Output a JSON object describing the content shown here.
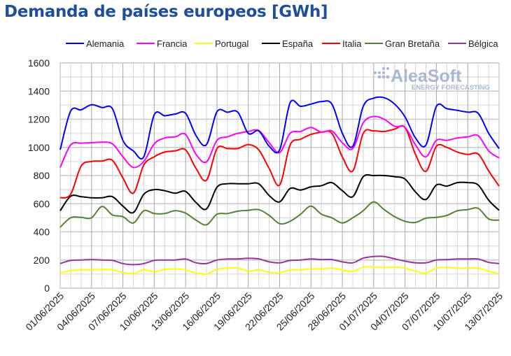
{
  "chart_data": {
    "type": "line",
    "title": "Demanda de países europeos [GWh]",
    "xlabel": "",
    "ylabel": "",
    "ylim": [
      0,
      1600
    ],
    "yticks": [
      0,
      200,
      400,
      600,
      800,
      1000,
      1200,
      1400,
      1600
    ],
    "grid": true,
    "legend_position": "top",
    "x_start": "01/06/2025",
    "x_end": "13/07/2025",
    "xtick_labels": [
      "01/06/2025",
      "04/06/2025",
      "07/06/2025",
      "10/06/2025",
      "13/06/2025",
      "16/06/2025",
      "19/06/2025",
      "22/06/2025",
      "25/06/2025",
      "28/06/2025",
      "01/07/2025",
      "04/07/2025",
      "07/07/2025",
      "10/07/2025",
      "13/07/2025"
    ],
    "series": [
      {
        "name": "Alemania",
        "color": "#0000ff",
        "values": [
          983,
          1258,
          1267,
          1303,
          1283,
          1275,
          1050,
          975,
          933,
          1233,
          1225,
          1237,
          1242,
          1083,
          1020,
          1253,
          1250,
          1250,
          1100,
          1117,
          1008,
          983,
          1317,
          1292,
          1308,
          1325,
          1308,
          1100,
          1008,
          1292,
          1350,
          1353,
          1308,
          1217,
          1067,
          1017,
          1292,
          1275,
          1263,
          1250,
          1242,
          1100,
          992
        ]
      },
      {
        "name": "Francia",
        "color": "#ff00ff",
        "values": [
          858,
          1017,
          1030,
          1033,
          1037,
          1025,
          933,
          858,
          900,
          1025,
          1067,
          1075,
          1092,
          950,
          897,
          1050,
          1075,
          1100,
          1113,
          1120,
          1033,
          963,
          1100,
          1113,
          1142,
          1108,
          1117,
          1033,
          992,
          1175,
          1220,
          1200,
          1150,
          1142,
          1017,
          933,
          1050,
          1050,
          1067,
          1075,
          1083,
          975,
          925
        ]
      },
      {
        "name": "Portugal",
        "color": "#ffff00",
        "values": [
          108,
          125,
          130,
          130,
          133,
          130,
          113,
          103,
          130,
          117,
          133,
          137,
          130,
          108,
          100,
          133,
          142,
          142,
          120,
          130,
          113,
          108,
          130,
          130,
          137,
          137,
          142,
          130,
          120,
          150,
          150,
          147,
          150,
          142,
          120,
          108,
          142,
          147,
          142,
          142,
          142,
          120,
          103
        ]
      },
      {
        "name": "España",
        "color": "#000000",
        "values": [
          550,
          653,
          650,
          642,
          642,
          650,
          583,
          537,
          667,
          700,
          692,
          675,
          687,
          608,
          563,
          717,
          742,
          742,
          742,
          742,
          658,
          613,
          708,
          697,
          720,
          728,
          750,
          692,
          650,
          792,
          800,
          800,
          792,
          775,
          683,
          630,
          733,
          725,
          750,
          750,
          733,
          625,
          553
        ]
      },
      {
        "name": "Italia",
        "color": "#ff0000",
        "values": [
          642,
          667,
          867,
          900,
          903,
          908,
          783,
          675,
          875,
          933,
          967,
          975,
          983,
          850,
          767,
          992,
          992,
          992,
          1020,
          983,
          850,
          733,
          1017,
          1058,
          1092,
          1108,
          1100,
          933,
          833,
          1100,
          1117,
          1113,
          1130,
          1142,
          950,
          830,
          1008,
          1000,
          967,
          950,
          953,
          833,
          725
        ]
      },
      {
        "name": "Gran Bretaña",
        "color": "#548235",
        "values": [
          433,
          500,
          503,
          500,
          580,
          520,
          508,
          463,
          550,
          530,
          530,
          550,
          533,
          483,
          450,
          525,
          530,
          547,
          553,
          558,
          517,
          458,
          475,
          525,
          583,
          525,
          500,
          463,
          500,
          550,
          613,
          558,
          508,
          475,
          467,
          497,
          503,
          517,
          550,
          558,
          567,
          492,
          483
        ]
      },
      {
        "name": "Bélgica",
        "color": "#993399",
        "values": [
          175,
          197,
          200,
          203,
          200,
          197,
          175,
          167,
          175,
          197,
          200,
          200,
          207,
          180,
          175,
          200,
          207,
          208,
          212,
          208,
          187,
          180,
          197,
          200,
          207,
          203,
          203,
          187,
          180,
          213,
          225,
          225,
          208,
          192,
          180,
          180,
          200,
          203,
          207,
          207,
          207,
          183,
          175
        ]
      }
    ]
  },
  "watermark": {
    "brand": "AleaSoft",
    "tagline": "ENERGY FORECASTING",
    "color": "#a8b8d4"
  }
}
